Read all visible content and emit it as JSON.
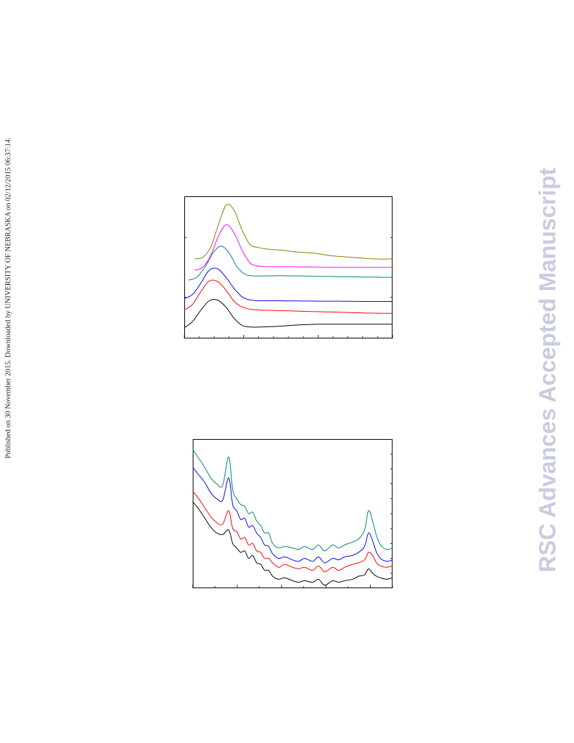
{
  "page": {
    "published_note": "Published on 30 November 2015. Downloaded by UNIVERSITY OF NEBRASKA on 02/12/2015 06:37:14.",
    "watermark": "RSC Advances Accepted Manuscript"
  },
  "colors": {
    "black": "#000000",
    "red": "#ff0000",
    "blue": "#0000ff",
    "teal": "#008080",
    "magenta": "#ff00ff",
    "olive": "#808000"
  },
  "chart_data": [
    {
      "type": "line",
      "title": "",
      "xlabel": "",
      "ylabel": "",
      "axis_labels_printed": false,
      "grid": false,
      "legend": "none",
      "x": [
        0.0,
        0.04,
        0.08,
        0.12,
        0.16,
        0.2,
        0.24,
        0.28,
        0.32,
        0.36,
        0.4,
        0.45,
        0.5,
        0.55,
        0.6,
        0.65,
        0.7,
        0.75,
        0.8,
        0.85,
        0.9,
        0.95,
        1.0
      ],
      "series": [
        {
          "color": "#000000",
          "start": 0.0,
          "values": [
            0.075,
            0.12,
            0.2,
            0.265,
            0.27,
            0.22,
            0.14,
            0.09,
            0.08,
            0.08,
            0.082,
            0.085,
            0.09,
            0.095,
            0.098,
            0.1,
            0.1,
            0.1,
            0.1,
            0.1,
            0.1,
            0.1,
            0.1
          ]
        },
        {
          "color": "#ff0000",
          "start": 0.0,
          "values": [
            0.2,
            0.24,
            0.33,
            0.405,
            0.4,
            0.34,
            0.26,
            0.22,
            0.205,
            0.2,
            0.198,
            0.196,
            0.194,
            0.192,
            0.19,
            0.188,
            0.186,
            0.184,
            0.182,
            0.18,
            0.178,
            0.177,
            0.176
          ]
        },
        {
          "color": "#0000ff",
          "start": 0.0,
          "values": [
            0.28,
            0.31,
            0.39,
            0.48,
            0.49,
            0.43,
            0.35,
            0.29,
            0.27,
            0.265,
            0.265,
            0.265,
            0.264,
            0.264,
            0.263,
            0.262,
            0.262,
            0.262,
            0.261,
            0.26,
            0.26,
            0.26,
            0.26
          ]
        },
        {
          "color": "#008080",
          "start": 0.02,
          "values": [
            0.41,
            0.43,
            0.5,
            0.6,
            0.65,
            0.6,
            0.5,
            0.45,
            0.44,
            0.44,
            0.44,
            0.442,
            0.44,
            0.44,
            0.438,
            0.436,
            0.436,
            0.434,
            0.434,
            0.432,
            0.432,
            0.43,
            0.43
          ]
        },
        {
          "color": "#ff00ff",
          "start": 0.05,
          "values": [
            0.48,
            0.5,
            0.58,
            0.72,
            0.8,
            0.74,
            0.62,
            0.53,
            0.51,
            0.505,
            0.505,
            0.505,
            0.505,
            0.503,
            0.502,
            0.5,
            0.5,
            0.5,
            0.5,
            0.5,
            0.5,
            0.5,
            0.5
          ]
        },
        {
          "color": "#808000",
          "start": 0.05,
          "values": [
            0.56,
            0.57,
            0.64,
            0.8,
            0.94,
            0.9,
            0.76,
            0.66,
            0.64,
            0.63,
            0.625,
            0.62,
            0.61,
            0.605,
            0.6,
            0.59,
            0.58,
            0.575,
            0.57,
            0.565,
            0.56,
            0.558,
            0.56
          ]
        }
      ]
    },
    {
      "type": "line",
      "title": "",
      "xlabel": "",
      "ylabel": "",
      "axis_labels_printed": false,
      "grid": false,
      "legend": "none",
      "x": [
        0.0,
        0.03,
        0.06,
        0.09,
        0.12,
        0.15,
        0.18,
        0.2,
        0.22,
        0.24,
        0.26,
        0.28,
        0.3,
        0.32,
        0.34,
        0.36,
        0.38,
        0.4,
        0.43,
        0.46,
        0.5,
        0.53,
        0.56,
        0.6,
        0.63,
        0.66,
        0.7,
        0.73,
        0.76,
        0.8,
        0.83,
        0.86,
        0.88,
        0.9,
        0.92,
        0.94,
        0.97,
        1.0
      ],
      "series": [
        {
          "color": "#000000",
          "values": [
            0.58,
            0.53,
            0.47,
            0.41,
            0.37,
            0.36,
            0.39,
            0.3,
            0.27,
            0.24,
            0.25,
            0.2,
            0.22,
            0.17,
            0.16,
            0.12,
            0.12,
            0.08,
            0.06,
            0.07,
            0.05,
            0.04,
            0.05,
            0.04,
            0.06,
            0.02,
            0.05,
            0.04,
            0.05,
            0.06,
            0.08,
            0.09,
            0.13,
            0.1,
            0.08,
            0.07,
            0.06,
            0.07
          ]
        },
        {
          "color": "#ff0000",
          "values": [
            0.65,
            0.6,
            0.54,
            0.48,
            0.44,
            0.43,
            0.52,
            0.4,
            0.38,
            0.33,
            0.34,
            0.29,
            0.3,
            0.25,
            0.24,
            0.2,
            0.2,
            0.17,
            0.14,
            0.16,
            0.14,
            0.13,
            0.14,
            0.12,
            0.15,
            0.11,
            0.14,
            0.12,
            0.14,
            0.16,
            0.17,
            0.19,
            0.24,
            0.22,
            0.17,
            0.15,
            0.14,
            0.15
          ]
        },
        {
          "color": "#0000ff",
          "values": [
            0.81,
            0.76,
            0.71,
            0.64,
            0.6,
            0.59,
            0.74,
            0.56,
            0.52,
            0.46,
            0.47,
            0.41,
            0.42,
            0.37,
            0.34,
            0.29,
            0.28,
            0.23,
            0.2,
            0.21,
            0.19,
            0.18,
            0.2,
            0.18,
            0.21,
            0.17,
            0.2,
            0.19,
            0.21,
            0.22,
            0.24,
            0.28,
            0.37,
            0.32,
            0.24,
            0.2,
            0.18,
            0.19
          ]
        },
        {
          "color": "#008080",
          "values": [
            0.93,
            0.87,
            0.81,
            0.74,
            0.7,
            0.69,
            0.88,
            0.66,
            0.6,
            0.56,
            0.55,
            0.5,
            0.51,
            0.45,
            0.42,
            0.37,
            0.37,
            0.3,
            0.27,
            0.28,
            0.27,
            0.26,
            0.28,
            0.26,
            0.29,
            0.25,
            0.29,
            0.27,
            0.29,
            0.31,
            0.33,
            0.39,
            0.52,
            0.45,
            0.35,
            0.29,
            0.26,
            0.27
          ]
        }
      ]
    }
  ]
}
